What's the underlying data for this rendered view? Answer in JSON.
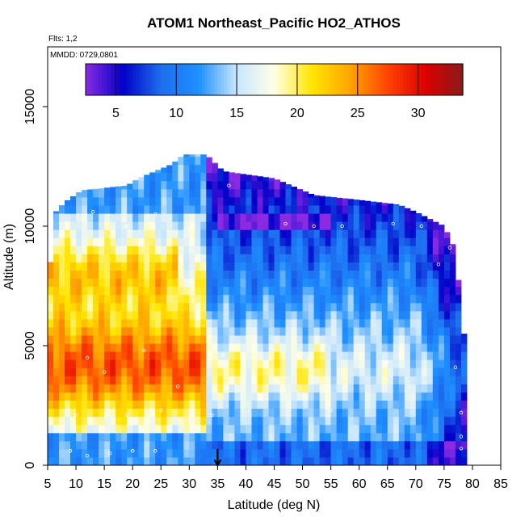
{
  "chart_data": {
    "type": "heatmap",
    "title": "ATOM1 Northeast_Pacific HO2_ATHOS",
    "annotations": [
      "Flts: 1,2",
      "MMDD: 0729,0801"
    ],
    "xlabel": "Latitude (deg N)",
    "ylabel": "Altitude (m)",
    "xlim": [
      5,
      85
    ],
    "ylim": [
      0,
      17500
    ],
    "xticks": [
      5,
      10,
      15,
      20,
      25,
      30,
      35,
      40,
      45,
      50,
      55,
      60,
      65,
      70,
      75,
      80,
      85
    ],
    "yticks": [
      0,
      5000,
      10000,
      15000
    ],
    "colorbar": {
      "range": [
        2.5,
        33.7
      ],
      "ticks": [
        5,
        10,
        15,
        20,
        25,
        30
      ],
      "colors": [
        "#8a2be2",
        "#0000c8",
        "#1e6ef0",
        "#1e90ff",
        "#c8e6ff",
        "#ffffe6",
        "#ffe600",
        "#ffa500",
        "#ff4500",
        "#dc0000",
        "#8b1a1a"
      ]
    },
    "marker": {
      "x": 35,
      "label": "arrow"
    },
    "grid": false,
    "sampled_points": [
      [
        13,
        10600
      ],
      [
        19,
        10000
      ],
      [
        24,
        10500
      ],
      [
        30,
        9900
      ],
      [
        37,
        11700
      ],
      [
        47,
        10100
      ],
      [
        52,
        10000
      ],
      [
        57,
        10000
      ],
      [
        66,
        10100
      ],
      [
        71,
        10000
      ],
      [
        12,
        4500
      ],
      [
        15,
        3900
      ],
      [
        22,
        4800
      ],
      [
        28,
        3300
      ],
      [
        36,
        4600
      ],
      [
        65,
        4300
      ],
      [
        77,
        4100
      ],
      [
        10,
        2100
      ],
      [
        19,
        2100
      ],
      [
        25,
        2300
      ],
      [
        34,
        2100
      ],
      [
        55,
        2300
      ],
      [
        78,
        2200
      ],
      [
        9,
        600
      ],
      [
        12,
        400
      ],
      [
        16,
        500
      ],
      [
        20,
        600
      ],
      [
        24,
        600
      ],
      [
        78,
        700
      ],
      [
        78,
        1200
      ],
      [
        76,
        9100
      ],
      [
        74,
        8400
      ]
    ]
  }
}
